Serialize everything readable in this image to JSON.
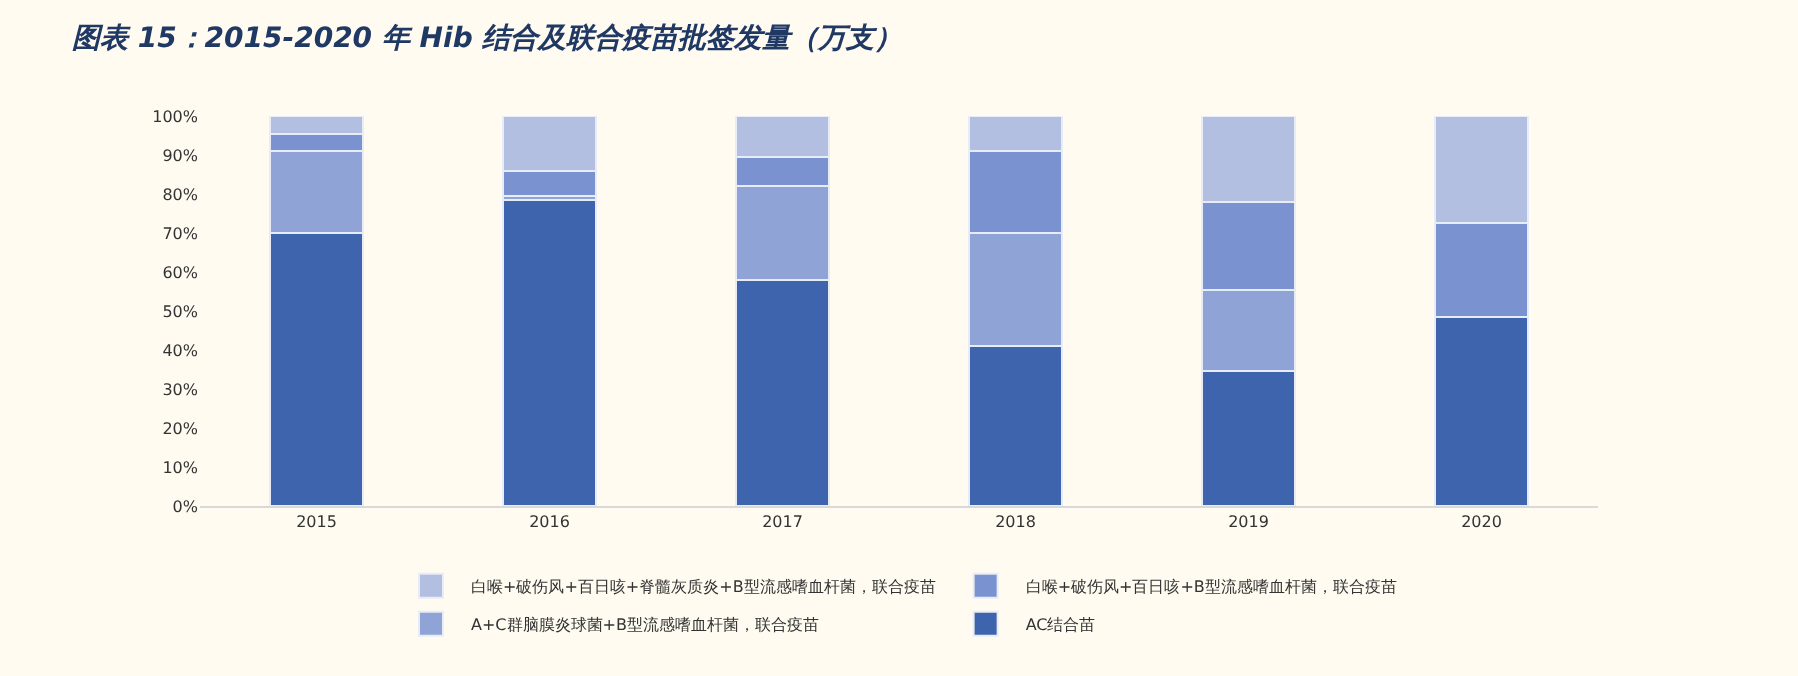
{
  "chart_data": {
    "type": "bar",
    "title": "图表 15：2015-2020 年 Hib 结合及联合疫苗批签发量（万支）",
    "categories": [
      "2015",
      "2016",
      "2017",
      "2018",
      "2019",
      "2020"
    ],
    "stacked": true,
    "series": [
      {
        "name": "AC结合苗",
        "color": "#3d64ad",
        "values": [
          70,
          78.5,
          58,
          41,
          34.5,
          48.5
        ]
      },
      {
        "name": "A+C群脑膜炎球菌+B型流感嗜血杆菌，联合疫苗",
        "color": "#8fa3d6",
        "values": [
          21,
          1,
          24,
          29,
          21,
          0
        ]
      },
      {
        "name": "白喉+破伤风+百日咳+B型流感嗜血杆菌，联合疫苗",
        "color": "#7a93d0",
        "values": [
          4.5,
          6.5,
          7.5,
          21,
          22.5,
          24
        ]
      },
      {
        "name": "白喉+破伤风+百日咳+脊髓灰质炎+B型流感嗜血杆菌，联合疫苗",
        "color": "#b3bfe0",
        "values": [
          4.5,
          14,
          10.5,
          9,
          22,
          27.5
        ]
      }
    ],
    "ylim": [
      0,
      100
    ],
    "yticks": [
      {
        "value": 0,
        "label": "0%"
      },
      {
        "value": 10,
        "label": "10%"
      },
      {
        "value": 20,
        "label": "20%"
      },
      {
        "value": 30,
        "label": "30%"
      },
      {
        "value": 40,
        "label": "40%"
      },
      {
        "value": 50,
        "label": "50%"
      },
      {
        "value": 60,
        "label": "60%"
      },
      {
        "value": 70,
        "label": "70%"
      },
      {
        "value": 80,
        "label": "80%"
      },
      {
        "value": 90,
        "label": "90%"
      },
      {
        "value": 100,
        "label": "100%"
      }
    ],
    "grid": false,
    "legend": "bottom"
  }
}
